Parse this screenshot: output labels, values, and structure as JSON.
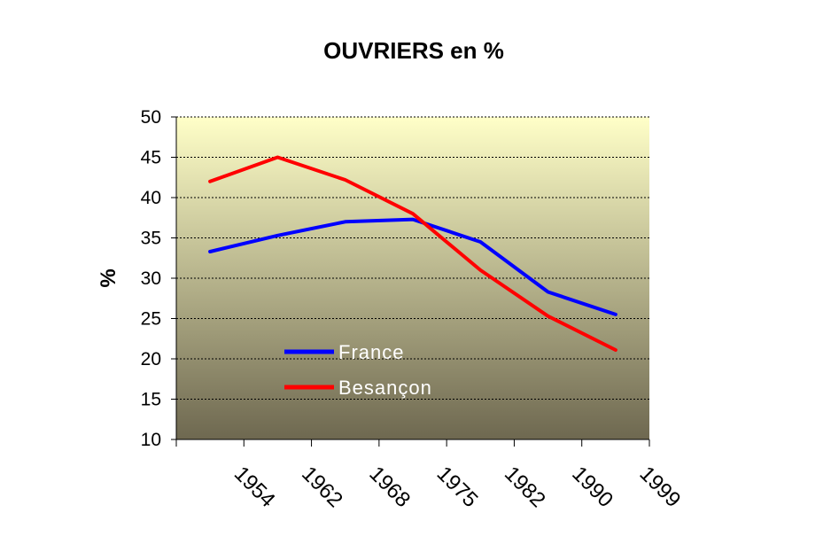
{
  "chart_data": {
    "type": "line",
    "title": "OUVRIERS en %",
    "xlabel": "",
    "ylabel": "%",
    "categories": [
      "1954",
      "1962",
      "1968",
      "1975",
      "1982",
      "1990",
      "1999"
    ],
    "ylim": [
      10,
      50
    ],
    "yticks": [
      "10",
      "15",
      "20",
      "25",
      "30",
      "35",
      "40",
      "45",
      "50"
    ],
    "grid": true,
    "legend": "inside-lower-left",
    "background_gradient": [
      "#ffffc8",
      "#6e6850"
    ],
    "series": [
      {
        "name": "France",
        "color": "#0000ff",
        "values": [
          33.3,
          35.3,
          37.0,
          37.3,
          34.5,
          28.3,
          25.5
        ]
      },
      {
        "name": "Besançon",
        "color": "#ff0000",
        "values": [
          42.0,
          45.0,
          42.2,
          38.0,
          31.0,
          25.3,
          21.1
        ]
      }
    ]
  }
}
